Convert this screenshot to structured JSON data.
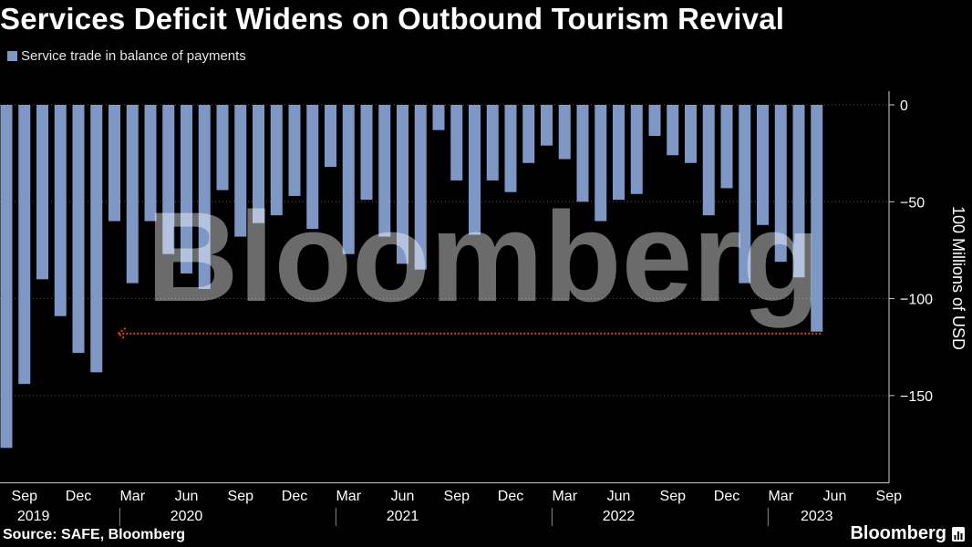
{
  "title": "Services Deficit Widens on Outbound Tourism Revival",
  "legend": {
    "label": "Service trade in balance of payments"
  },
  "source": "Source: SAFE, Bloomberg",
  "brand": "Bloomberg",
  "watermark": "Bloomberg",
  "colors": {
    "bar": "#7f97c4",
    "background": "#000000",
    "annotation": "#e8401c",
    "grid": "#555555"
  },
  "chart_data": {
    "type": "bar",
    "ylabel": "100 Millions of USD",
    "ylim": [
      -195,
      18
    ],
    "yticks": [
      0,
      -50,
      -100,
      -150
    ],
    "grid": "horizontal dotted",
    "legend_position": "top-left",
    "x_month_labels": [
      {
        "label": "Sep",
        "index": 1
      },
      {
        "label": "Dec",
        "index": 4
      },
      {
        "label": "Mar",
        "index": 7
      },
      {
        "label": "Jun",
        "index": 10
      },
      {
        "label": "Sep",
        "index": 13
      },
      {
        "label": "Dec",
        "index": 16
      },
      {
        "label": "Mar",
        "index": 19
      },
      {
        "label": "Jun",
        "index": 22
      },
      {
        "label": "Sep",
        "index": 25
      },
      {
        "label": "Dec",
        "index": 28
      },
      {
        "label": "Mar",
        "index": 31
      },
      {
        "label": "Jun",
        "index": 34
      },
      {
        "label": "Sep",
        "index": 37
      },
      {
        "label": "Dec",
        "index": 40
      },
      {
        "label": "Mar",
        "index": 43
      },
      {
        "label": "Jun",
        "index": 46
      },
      {
        "label": "Sep",
        "index": 49
      }
    ],
    "x_year_labels": [
      {
        "label": "2019",
        "index": 1.5
      },
      {
        "label": "2020",
        "index": 10
      },
      {
        "label": "2021",
        "index": 22
      },
      {
        "label": "2022",
        "index": 34
      },
      {
        "label": "2023",
        "index": 45
      }
    ],
    "values": [
      -177,
      -144,
      -90,
      -109,
      -128,
      -138,
      -60,
      -92,
      -60,
      -77,
      -87,
      -95,
      -44,
      -68,
      -61,
      -57,
      -47,
      -64,
      -32,
      -77,
      -49,
      -68,
      -82,
      -85,
      -13,
      -39,
      -67,
      -39,
      -45,
      -30,
      -21,
      -28,
      -50,
      -60,
      -49,
      -46,
      -16,
      -26,
      -30,
      -57,
      -43,
      -92,
      -62,
      -81,
      -89,
      -117
    ],
    "annotation": {
      "type": "dotted-arrow",
      "value": -118,
      "from_index": 45,
      "to_index": 6
    }
  }
}
